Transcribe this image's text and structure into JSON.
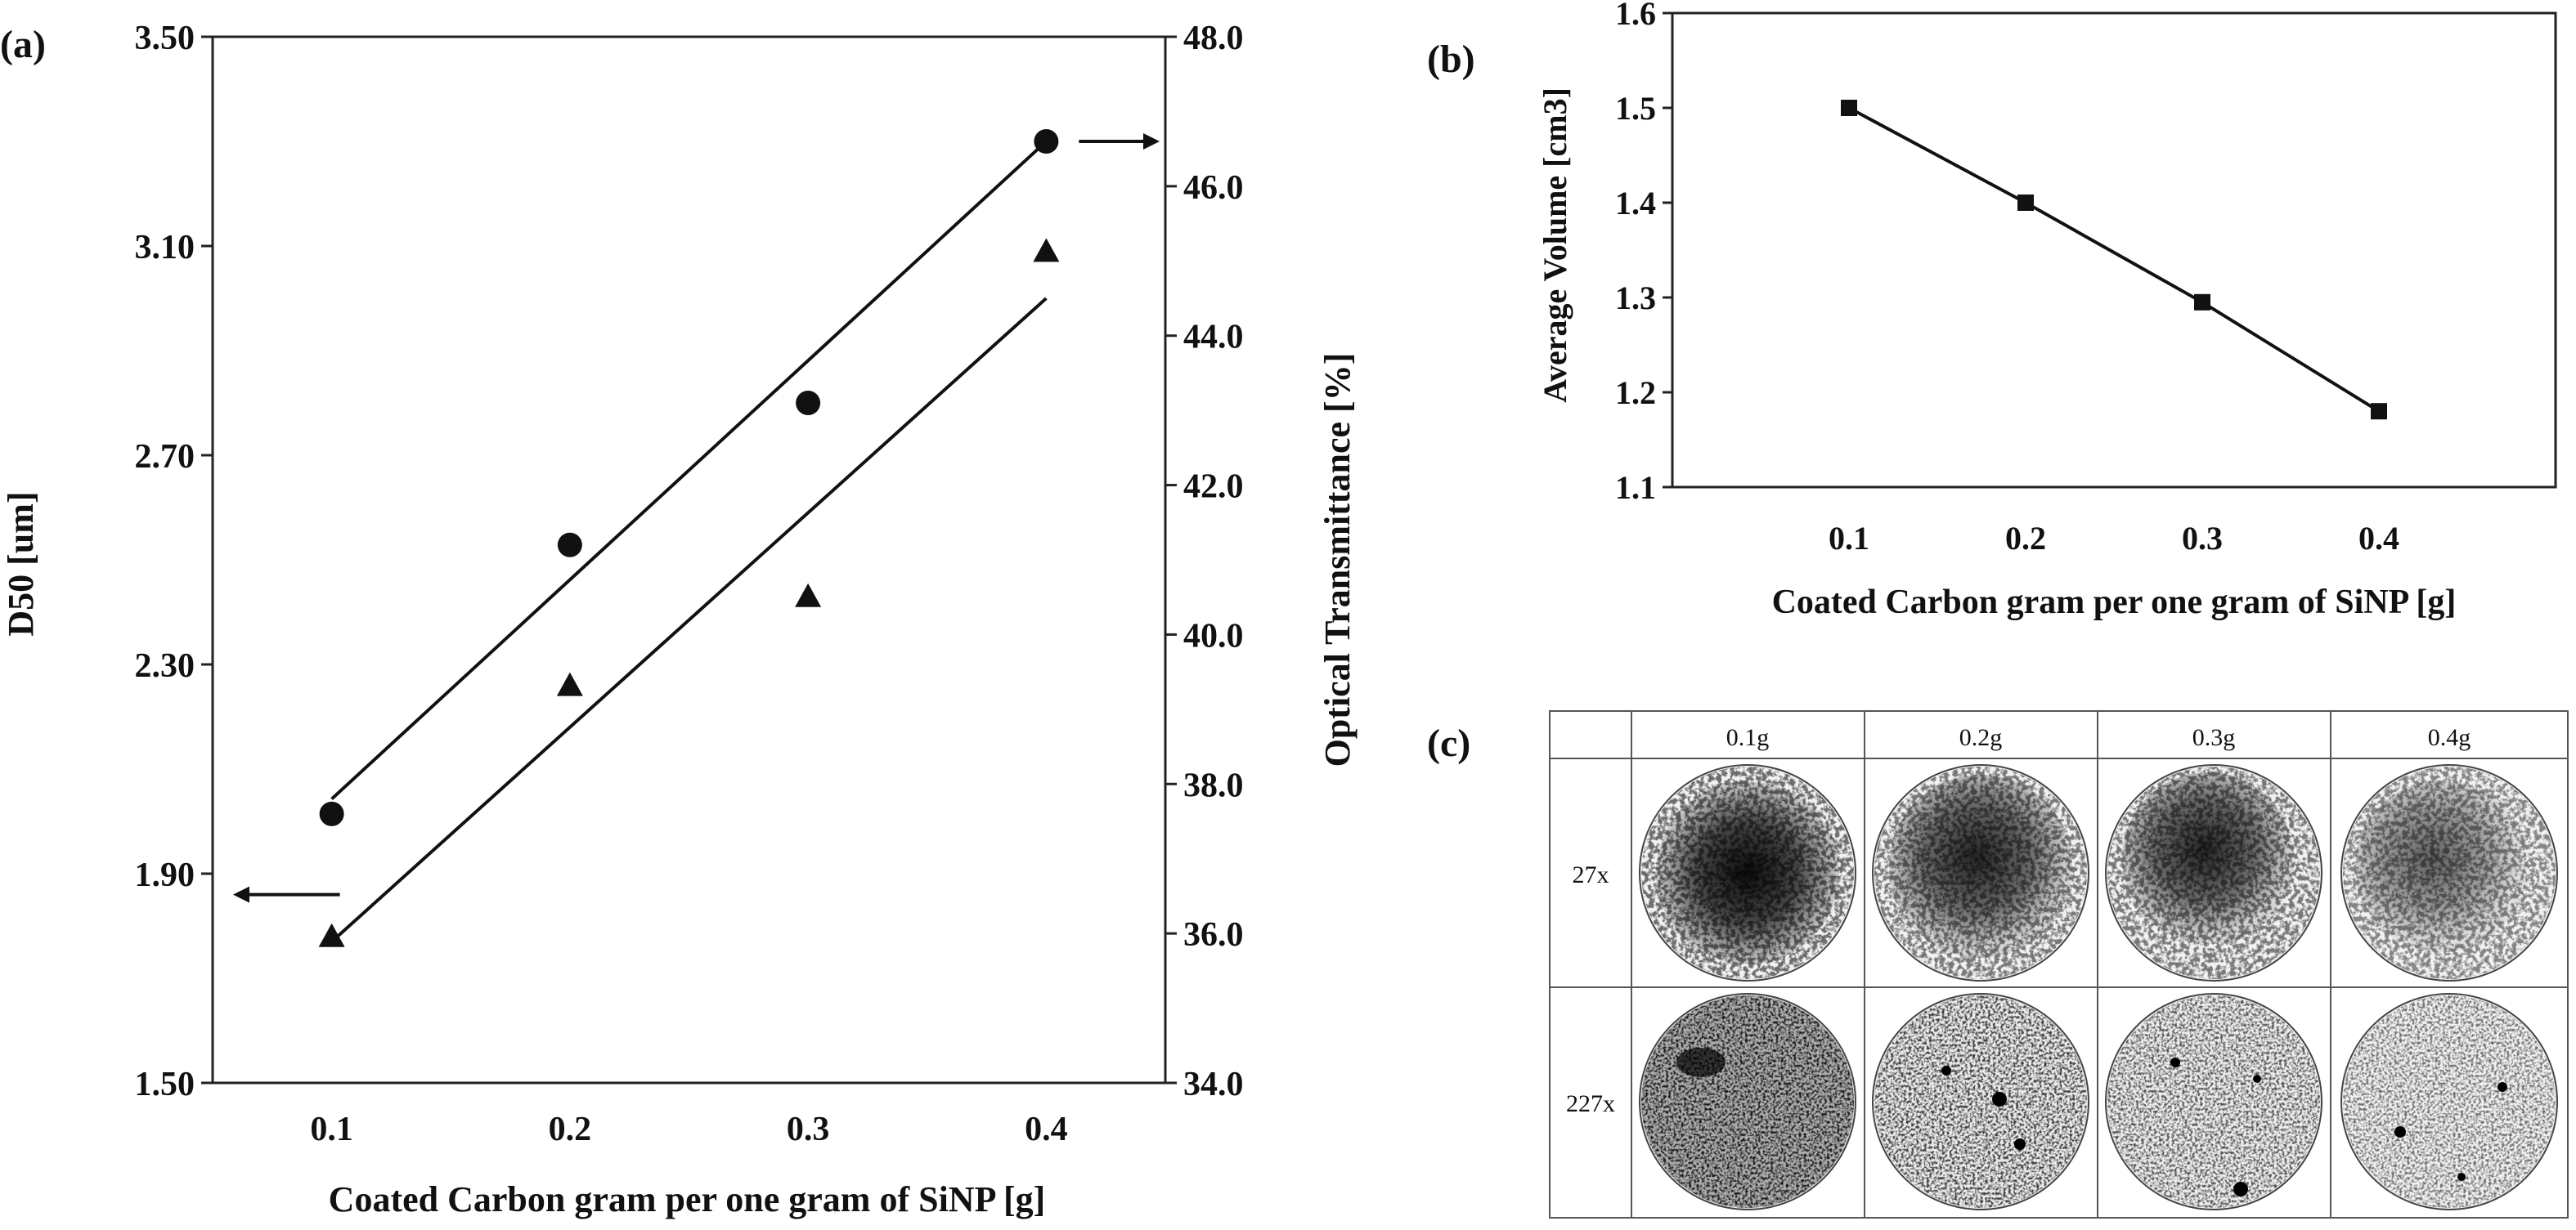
{
  "panels": {
    "a": {
      "label": "(a)"
    },
    "b": {
      "label": "(b)"
    },
    "c": {
      "label": "(c)",
      "columns": [
        "0.1g",
        "0.2g",
        "0.3g",
        "0.4g"
      ],
      "rows": [
        "27x",
        "227x"
      ]
    }
  },
  "colors": {
    "ink": "#111111",
    "frame": "#222222"
  },
  "chart_data": [
    {
      "panel": "a",
      "type": "scatter",
      "xlabel": "Coated Carbon gram per one gram of SiNP [g]",
      "ylabel": "D50 [um]",
      "y2label": "Optical Transmittance [%]",
      "x_ticks": [
        "0.1",
        "0.2",
        "0.3",
        "0.4"
      ],
      "y_ticks": [
        "1.50",
        "1.90",
        "2.30",
        "2.70",
        "3.10",
        "3.50"
      ],
      "y2_ticks": [
        "34.0",
        "36.0",
        "38.0",
        "40.0",
        "42.0",
        "44.0",
        "46.0",
        "48.0"
      ],
      "xlim": [
        0.05,
        0.45
      ],
      "ylim": [
        1.5,
        3.5
      ],
      "y2lim": [
        34,
        48
      ],
      "grid": false,
      "series": [
        {
          "marker": "circle",
          "axis": "right",
          "x": [
            0.1,
            0.2,
            0.3,
            0.4
          ],
          "y": [
            37.6,
            41.2,
            43.1,
            46.6
          ],
          "fit": [
            [
              0.1,
              37.8
            ],
            [
              0.4,
              46.6
            ]
          ]
        },
        {
          "marker": "triangle",
          "axis": "left",
          "x": [
            0.1,
            0.2,
            0.3,
            0.4
          ],
          "y": [
            1.78,
            2.26,
            2.43,
            3.09
          ],
          "fit": [
            [
              0.1,
              1.77
            ],
            [
              0.4,
              3.0
            ]
          ]
        }
      ],
      "annotations": [
        {
          "type": "arrow",
          "direction": "left",
          "near": "x=0.1, y=1.86 (left axis)"
        },
        {
          "type": "arrow",
          "direction": "right",
          "near": "x=0.4, y2=46.6 (right axis)"
        }
      ]
    },
    {
      "panel": "b",
      "type": "line",
      "xlabel": "Coated Carbon gram per one gram of SiNP [g]",
      "ylabel": "Average Volume [cm3]",
      "x_ticks": [
        "0.1",
        "0.2",
        "0.3",
        "0.4"
      ],
      "y_ticks": [
        "1.1",
        "1.2",
        "1.3",
        "1.4",
        "1.5",
        "1.6"
      ],
      "xlim": [
        0.0,
        0.5
      ],
      "ylim": [
        1.1,
        1.6
      ],
      "grid": false,
      "series": [
        {
          "marker": "square",
          "x": [
            0.1,
            0.2,
            0.3,
            0.4
          ],
          "y": [
            1.5,
            1.4,
            1.295,
            1.18
          ]
        }
      ]
    }
  ]
}
